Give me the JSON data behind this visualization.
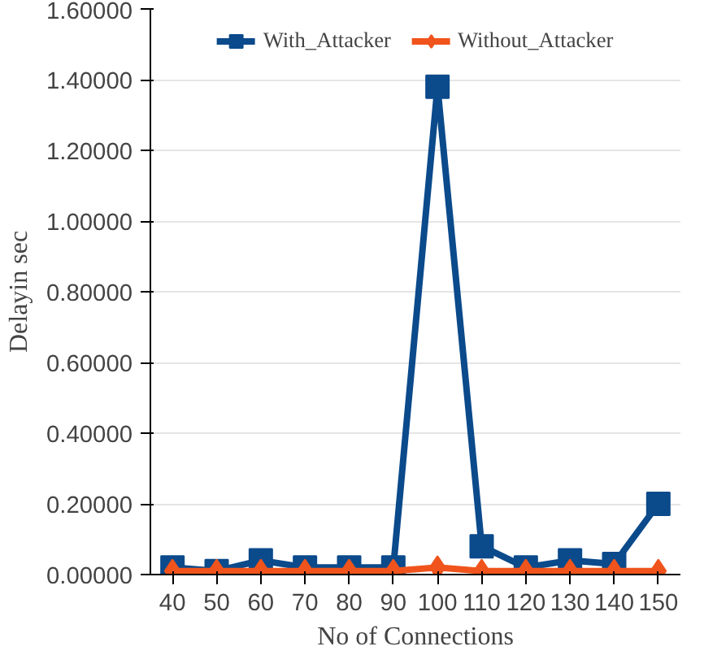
{
  "chart_data": {
    "type": "line",
    "xlabel": "No of Connections",
    "ylabel": "Delayin sec",
    "categories": [
      "40",
      "50",
      "60",
      "70",
      "80",
      "90",
      "100",
      "110",
      "120",
      "130",
      "140",
      "150"
    ],
    "series": [
      {
        "name": "With_Attacker",
        "color": "#0b4a8b",
        "marker": "square",
        "values": [
          0.02,
          0.01,
          0.04,
          0.02,
          0.02,
          0.02,
          1.38,
          0.08,
          0.02,
          0.04,
          0.03,
          0.2
        ]
      },
      {
        "name": "Without_Attacker",
        "color": "#f0541c",
        "marker": "diamond",
        "values": [
          0.01,
          0.01,
          0.01,
          0.01,
          0.01,
          0.01,
          0.02,
          0.01,
          0.01,
          0.01,
          0.01,
          0.01
        ]
      }
    ],
    "ylim": [
      0,
      1.6
    ],
    "yticks": [
      {
        "value": 0,
        "label": "0.00000"
      },
      {
        "value": 0.2,
        "label": "0.20000"
      },
      {
        "value": 0.4,
        "label": "0.40000"
      },
      {
        "value": 0.6,
        "label": "0.60000"
      },
      {
        "value": 0.8,
        "label": "0.80000"
      },
      {
        "value": 1.0,
        "label": "1.00000"
      },
      {
        "value": 1.2,
        "label": "1.20000"
      },
      {
        "value": 1.4,
        "label": "1.40000"
      },
      {
        "value": 1.6,
        "label": "1.60000"
      }
    ],
    "grid": "y",
    "legend": "top"
  }
}
